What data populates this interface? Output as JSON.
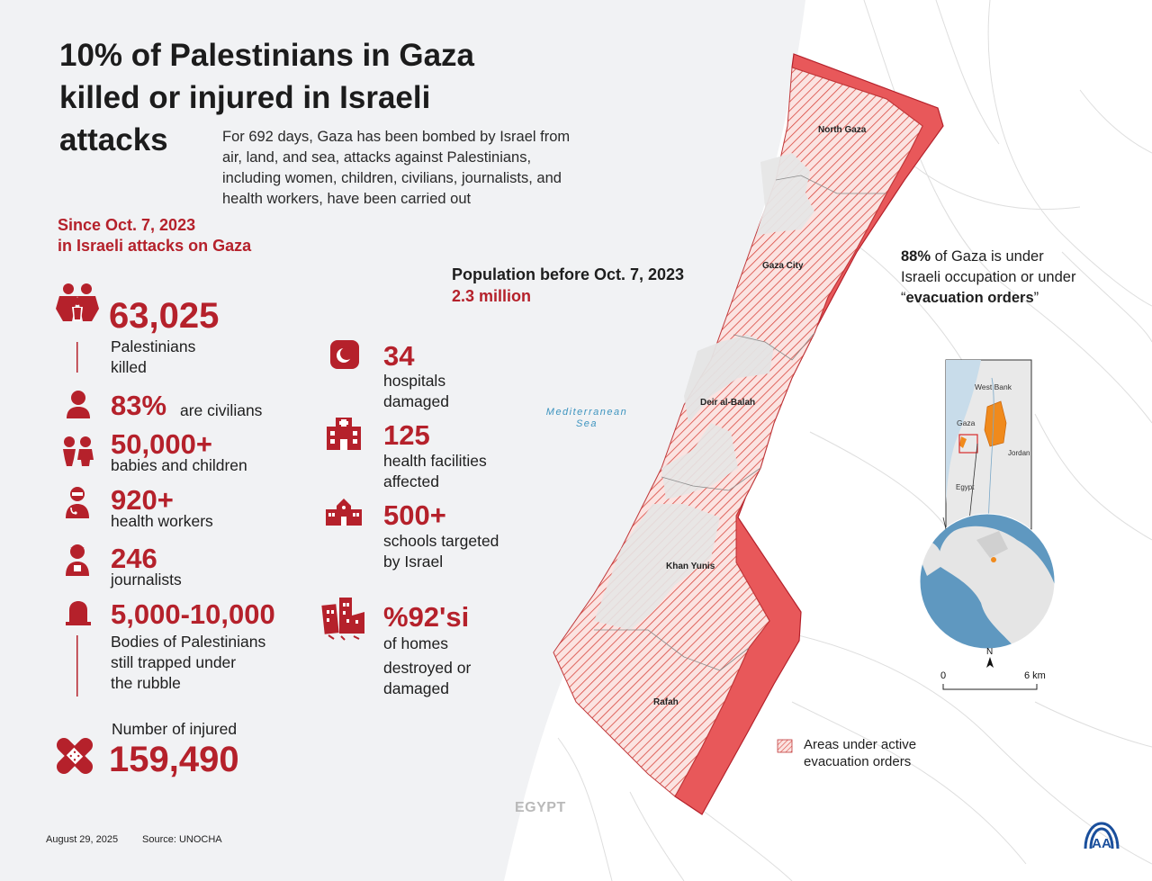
{
  "title": "10% of Palestinians in Gaza killed or injured in Israeli attacks",
  "title_lines": [
    "10% of Palestinians in Gaza",
    "killed or injured in Israeli",
    "attacks"
  ],
  "intro_lines": [
    "For 692 days, Gaza has been bombed by Israel from",
    "air, land, and sea, attacks against Palestinians,",
    "including women, children, civilians, journalists, and",
    "health workers, have been carried out"
  ],
  "since_lines": [
    "Since Oct. 7, 2023",
    "in Israeli attacks on Gaza"
  ],
  "population": {
    "label": "Population before Oct. 7, 2023",
    "value": "2.3 million"
  },
  "stats_left": {
    "killed": {
      "value": "63,025",
      "label_lines": [
        "Palestinians",
        "killed"
      ]
    },
    "civilians": {
      "value": "83%",
      "label": "are civilians"
    },
    "children": {
      "value": "50,000+",
      "label": "babies and children"
    },
    "health_workers": {
      "value": "920+",
      "label": "health workers"
    },
    "journalists": {
      "value": "246",
      "label": "journalists"
    },
    "trapped": {
      "value": "5,000-10,000",
      "label_lines": [
        "Bodies of Palestinians",
        "still trapped under",
        "the rubble"
      ]
    },
    "injured": {
      "label": "Number of injured",
      "value": "159,490"
    }
  },
  "stats_right": {
    "hospitals": {
      "value": "34",
      "label_lines": [
        "hospitals",
        "damaged"
      ]
    },
    "facilities": {
      "value": "125",
      "label_lines": [
        "health facilities",
        "affected"
      ]
    },
    "schools": {
      "value": "500+",
      "label_lines": [
        "schools targeted",
        "by Israel"
      ]
    },
    "homes": {
      "value": "%92'si",
      "label_lines": [
        "of homes",
        "destroyed or",
        "damaged"
      ]
    }
  },
  "map": {
    "regions": [
      "North Gaza",
      "Gaza City",
      "Deir al-Balah",
      "Khan Yunis",
      "Rafah"
    ],
    "sea_lines": [
      "Mediterranean",
      "Sea"
    ],
    "country": "EGYPT",
    "occupation_lines": {
      "pct": "88%",
      "rest1": " of Gaza is under",
      "line2": "Israeli occupation or under",
      "quote_open": "“",
      "bold": "evacuation orders",
      "quote_close": "”"
    },
    "inset_labels": {
      "west_bank": "West Bank",
      "gaza": "Gaza",
      "jordan": "Jordan",
      "egypt": "Egypt"
    },
    "north": "N",
    "scale": {
      "start": "0",
      "end": "6 km"
    },
    "legend_lines": [
      "Areas under active",
      "evacuation orders"
    ]
  },
  "footer": {
    "date": "August 29, 2025",
    "source": "Source: UNOCHA"
  },
  "logo_text": "AA",
  "colors": {
    "accent": "#b5212b",
    "hatch": "#d9534f",
    "inset_orange": "#f08a1c"
  }
}
